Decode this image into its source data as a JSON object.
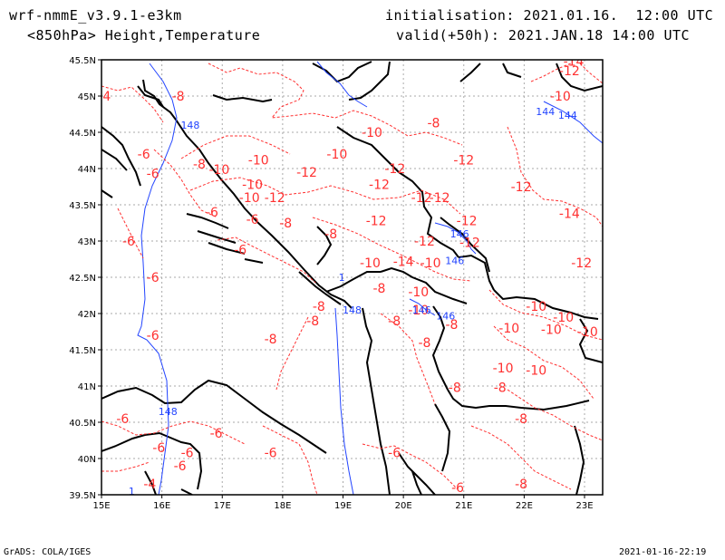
{
  "header": {
    "model": "wrf-nmmE_v3.9.1-e3km",
    "field": "<850hPa> Height,Temperature",
    "init": "initialisation: 2021.01.16.  12:00 UTC",
    "valid": "valid(+50h): 2021.JAN.18 14:00 UTC"
  },
  "map": {
    "lon_labels": [
      "15E",
      "16E",
      "17E",
      "18E",
      "19E",
      "20E",
      "21E",
      "22E",
      "23E"
    ],
    "lat_labels": [
      "45.5N",
      "45N",
      "44.5N",
      "44N",
      "43.5N",
      "43N",
      "42.5N",
      "42N",
      "41.5N",
      "41N",
      "40.5N",
      "40N",
      "39.5N"
    ],
    "temperature_labels": [
      {
        "text": "-14",
        "lon": 22.82,
        "lat": 45.48
      },
      {
        "text": "-12",
        "lon": 22.75,
        "lat": 45.35
      },
      {
        "text": "-10",
        "lon": 22.6,
        "lat": 45.0
      },
      {
        "text": "-8",
        "lon": 16.27,
        "lat": 45.0
      },
      {
        "text": "-4",
        "lon": 15.05,
        "lat": 45.0
      },
      {
        "text": "-8",
        "lon": 20.5,
        "lat": 44.63
      },
      {
        "text": "-10",
        "lon": 19.48,
        "lat": 44.5
      },
      {
        "text": "-10",
        "lon": 18.9,
        "lat": 44.2
      },
      {
        "text": "-6",
        "lon": 15.7,
        "lat": 44.2
      },
      {
        "text": "-10",
        "lon": 17.6,
        "lat": 44.12
      },
      {
        "text": "-12",
        "lon": 21.0,
        "lat": 44.12
      },
      {
        "text": "-8",
        "lon": 16.62,
        "lat": 44.06
      },
      {
        "text": "-10",
        "lon": 16.95,
        "lat": 43.99
      },
      {
        "text": "-12",
        "lon": 19.86,
        "lat": 44.0
      },
      {
        "text": "-6",
        "lon": 15.85,
        "lat": 43.93
      },
      {
        "text": "-12",
        "lon": 18.4,
        "lat": 43.95
      },
      {
        "text": "-10",
        "lon": 17.5,
        "lat": 43.78
      },
      {
        "text": "-12",
        "lon": 19.6,
        "lat": 43.78
      },
      {
        "text": "-12",
        "lon": 21.95,
        "lat": 43.75
      },
      {
        "text": "-10",
        "lon": 17.45,
        "lat": 43.6
      },
      {
        "text": "-12",
        "lon": 17.87,
        "lat": 43.6
      },
      {
        "text": "-12",
        "lon": 20.3,
        "lat": 43.6
      },
      {
        "text": "-12",
        "lon": 20.6,
        "lat": 43.6
      },
      {
        "text": "-14",
        "lon": 22.75,
        "lat": 43.38
      },
      {
        "text": "-6",
        "lon": 16.83,
        "lat": 43.4
      },
      {
        "text": "-6",
        "lon": 17.5,
        "lat": 43.3
      },
      {
        "text": "-8",
        "lon": 18.05,
        "lat": 43.25
      },
      {
        "text": "-12",
        "lon": 19.55,
        "lat": 43.28
      },
      {
        "text": "-12",
        "lon": 21.05,
        "lat": 43.28
      },
      {
        "text": "-8",
        "lon": 18.8,
        "lat": 43.1
      },
      {
        "text": "-6",
        "lon": 15.45,
        "lat": 43.0
      },
      {
        "text": "-12",
        "lon": 20.35,
        "lat": 43.0
      },
      {
        "text": "-12",
        "lon": 21.1,
        "lat": 42.98
      },
      {
        "text": "-6",
        "lon": 17.3,
        "lat": 42.88
      },
      {
        "text": "-14",
        "lon": 20.0,
        "lat": 42.72
      },
      {
        "text": "-10",
        "lon": 19.45,
        "lat": 42.7
      },
      {
        "text": "-10",
        "lon": 20.45,
        "lat": 42.7
      },
      {
        "text": "-12",
        "lon": 22.95,
        "lat": 42.7
      },
      {
        "text": "-6",
        "lon": 15.85,
        "lat": 42.5
      },
      {
        "text": "-8",
        "lon": 19.6,
        "lat": 42.35
      },
      {
        "text": "-8",
        "lon": 18.6,
        "lat": 42.1
      },
      {
        "text": "-10",
        "lon": 20.25,
        "lat": 42.3
      },
      {
        "text": "-10",
        "lon": 20.25,
        "lat": 42.05
      },
      {
        "text": "-10",
        "lon": 22.2,
        "lat": 42.1
      },
      {
        "text": "-10",
        "lon": 22.65,
        "lat": 41.95
      },
      {
        "text": "-8",
        "lon": 18.5,
        "lat": 41.9
      },
      {
        "text": "-8",
        "lon": 19.85,
        "lat": 41.9
      },
      {
        "text": "-8",
        "lon": 20.8,
        "lat": 41.85
      },
      {
        "text": "-10",
        "lon": 21.75,
        "lat": 41.8
      },
      {
        "text": "-10",
        "lon": 22.45,
        "lat": 41.78
      },
      {
        "text": "-10",
        "lon": 23.05,
        "lat": 41.75
      },
      {
        "text": "-6",
        "lon": 15.85,
        "lat": 41.7
      },
      {
        "text": "-8",
        "lon": 17.8,
        "lat": 41.65
      },
      {
        "text": "-8",
        "lon": 20.35,
        "lat": 41.6
      },
      {
        "text": "-10",
        "lon": 21.65,
        "lat": 41.25
      },
      {
        "text": "-10",
        "lon": 22.2,
        "lat": 41.22
      },
      {
        "text": "-8",
        "lon": 20.85,
        "lat": 40.98
      },
      {
        "text": "-8",
        "lon": 21.6,
        "lat": 40.98
      },
      {
        "text": "-6",
        "lon": 15.35,
        "lat": 40.55
      },
      {
        "text": "-6",
        "lon": 16.9,
        "lat": 40.35
      },
      {
        "text": "-8",
        "lon": 21.95,
        "lat": 40.55
      },
      {
        "text": "-6",
        "lon": 15.95,
        "lat": 40.15
      },
      {
        "text": "-6",
        "lon": 16.42,
        "lat": 40.08
      },
      {
        "text": "-6",
        "lon": 17.8,
        "lat": 40.08
      },
      {
        "text": "-6",
        "lon": 19.85,
        "lat": 40.08
      },
      {
        "text": "-6",
        "lon": 16.3,
        "lat": 39.9
      },
      {
        "text": "-4",
        "lon": 15.8,
        "lat": 39.65
      },
      {
        "text": "-6",
        "lon": 20.9,
        "lat": 39.6
      },
      {
        "text": "-8",
        "lon": 21.95,
        "lat": 39.65
      }
    ],
    "height_labels": [
      {
        "text": "148",
        "lon": 16.47,
        "lat": 44.6
      },
      {
        "text": "144",
        "lon": 22.35,
        "lat": 44.79
      },
      {
        "text": "144",
        "lon": 22.72,
        "lat": 44.74
      },
      {
        "text": "146",
        "lon": 20.93,
        "lat": 43.1
      },
      {
        "text": "146",
        "lon": 20.85,
        "lat": 42.73
      },
      {
        "text": "146",
        "lon": 20.3,
        "lat": 42.05
      },
      {
        "text": "146",
        "lon": 20.7,
        "lat": 41.97
      },
      {
        "text": "148",
        "lon": 19.15,
        "lat": 42.05
      },
      {
        "text": "148",
        "lon": 16.1,
        "lat": 40.65
      },
      {
        "text": "1",
        "lon": 18.98,
        "lat": 42.5
      },
      {
        "text": "1",
        "lon": 15.5,
        "lat": 39.55
      }
    ]
  },
  "footer": {
    "left": "GrADS: COLA/IGES",
    "right": "2021-01-16-22:19"
  }
}
